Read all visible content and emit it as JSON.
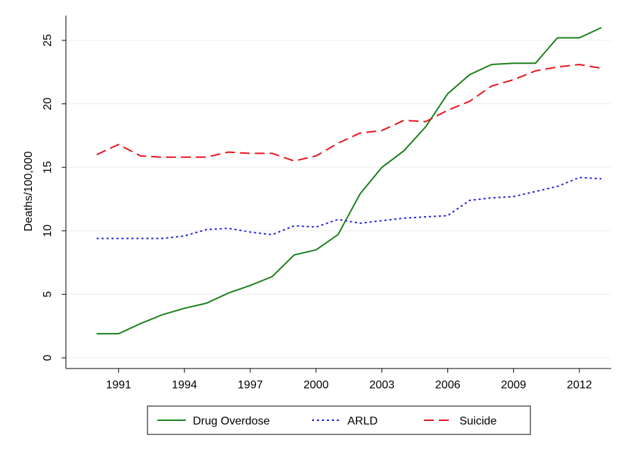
{
  "chart_data": {
    "type": "line",
    "y_label": "Deaths/100,000",
    "x": [
      1990,
      1991,
      1992,
      1993,
      1994,
      1995,
      1996,
      1997,
      1998,
      1999,
      2000,
      2001,
      2002,
      2003,
      2004,
      2005,
      2006,
      2007,
      2008,
      2009,
      2010,
      2011,
      2012,
      2013
    ],
    "series": [
      {
        "name": "Drug Overdose",
        "color": "#1a7f1a",
        "dash": "solid",
        "values": [
          1.9,
          1.9,
          2.7,
          3.4,
          3.9,
          4.3,
          5.1,
          5.7,
          6.4,
          8.1,
          8.5,
          9.7,
          12.9,
          15.0,
          16.3,
          18.2,
          20.8,
          22.3,
          23.1,
          23.2,
          23.2,
          25.2,
          25.2,
          26.0
        ]
      },
      {
        "name": "ARLD",
        "color": "#1f1fe0",
        "dash": "dot",
        "values": [
          9.4,
          9.4,
          9.4,
          9.4,
          9.6,
          10.1,
          10.2,
          9.9,
          9.7,
          10.4,
          10.3,
          10.9,
          10.6,
          10.8,
          11.0,
          11.1,
          11.2,
          12.4,
          12.6,
          12.7,
          13.1,
          13.5,
          14.2,
          14.1
        ]
      },
      {
        "name": "Suicide",
        "color": "#e8121a",
        "dash": "dash",
        "values": [
          16.0,
          16.8,
          15.9,
          15.8,
          15.8,
          15.8,
          16.2,
          16.1,
          16.1,
          15.5,
          15.9,
          16.9,
          17.7,
          17.9,
          18.7,
          18.6,
          19.5,
          20.2,
          21.4,
          21.9,
          22.6,
          22.9,
          23.1,
          22.8
        ]
      }
    ],
    "xlim": [
      1988.6,
      2013.45
    ],
    "xticks": [
      1991,
      1994,
      1997,
      2000,
      2003,
      2006,
      2009,
      2012
    ],
    "ylim": [
      -0.84,
      26.95
    ],
    "yticks": [
      0,
      5,
      10,
      15,
      20,
      25
    ],
    "grid": true,
    "legend": "bottom"
  }
}
